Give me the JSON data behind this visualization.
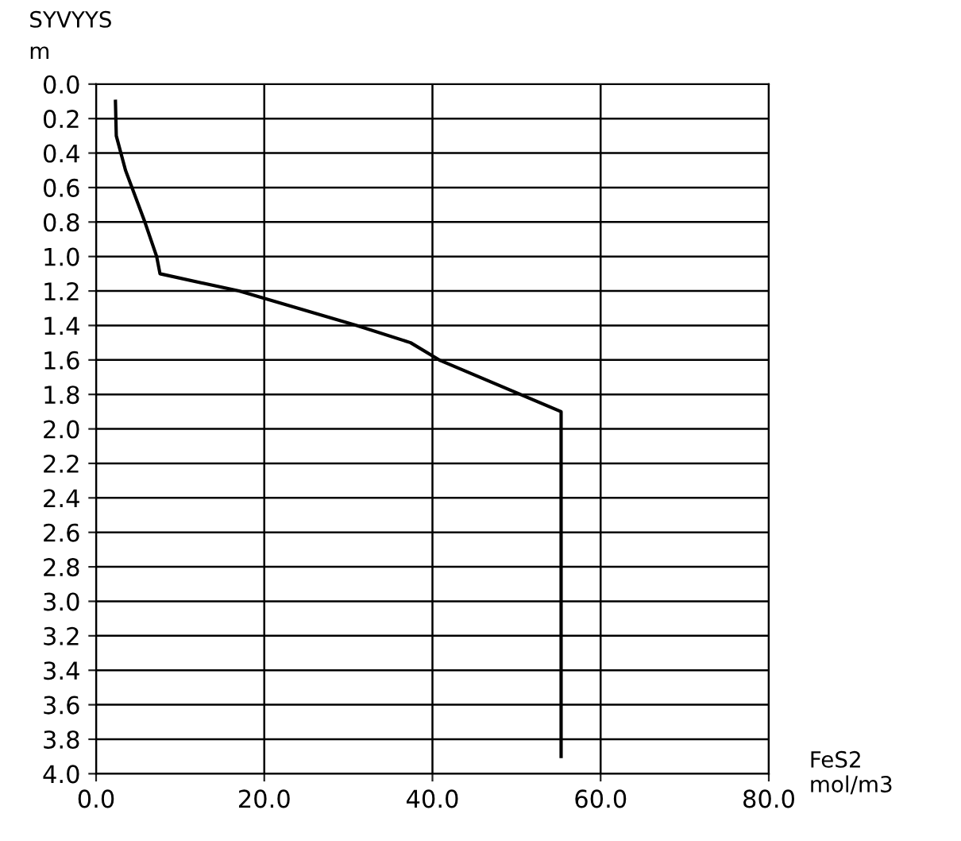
{
  "chart_data": {
    "type": "line",
    "ylabel": "SYVYYS\nm",
    "xlabel": "FeS2\nmol/m3",
    "series": [
      {
        "color": "#000000",
        "x": [
          2.3,
          2.4,
          3.5,
          5.8,
          7.2,
          7.6,
          17,
          31,
          37.4,
          40.8,
          55.3,
          55.3
        ],
        "values": [
          0.1,
          0.3,
          0.5,
          0.8,
          1.0,
          1.1,
          1.2,
          1.4,
          1.5,
          1.6,
          1.9,
          3.9
        ]
      }
    ],
    "xlim": [
      0,
      80
    ],
    "xticks": [
      {
        "value": 0,
        "label": "0.0"
      },
      {
        "value": 20,
        "label": "20.0"
      },
      {
        "value": 40,
        "label": "40.0"
      },
      {
        "value": 60,
        "label": "60.0"
      },
      {
        "value": 80,
        "label": "80.0"
      }
    ],
    "ylim": [
      4.0,
      0.0
    ],
    "yticks": [
      {
        "value": 0,
        "label": "0.0"
      },
      {
        "value": 0.2,
        "label": "0.2"
      },
      {
        "value": 0.4,
        "label": "0.4"
      },
      {
        "value": 0.6,
        "label": "0.6"
      },
      {
        "value": 0.8,
        "label": "0.8"
      },
      {
        "value": 1.0,
        "label": "1.0"
      },
      {
        "value": 1.2,
        "label": "1.2"
      },
      {
        "value": 1.4,
        "label": "1.4"
      },
      {
        "value": 1.6,
        "label": "1.6"
      },
      {
        "value": 1.8,
        "label": "1.8"
      },
      {
        "value": 2.0,
        "label": "2.0"
      },
      {
        "value": 2.2,
        "label": "2.2"
      },
      {
        "value": 2.4,
        "label": "2.4"
      },
      {
        "value": 2.6,
        "label": "2.6"
      },
      {
        "value": 2.8,
        "label": "2.8"
      },
      {
        "value": 3.0,
        "label": "3.0"
      },
      {
        "value": 3.2,
        "label": "3.2"
      },
      {
        "value": 3.4,
        "label": "3.4"
      },
      {
        "value": 3.6,
        "label": "3.6"
      },
      {
        "value": 3.8,
        "label": "3.8"
      },
      {
        "value": 4.0,
        "label": "4.0"
      }
    ],
    "grid": true,
    "line_style": "solid",
    "marker": "none"
  }
}
